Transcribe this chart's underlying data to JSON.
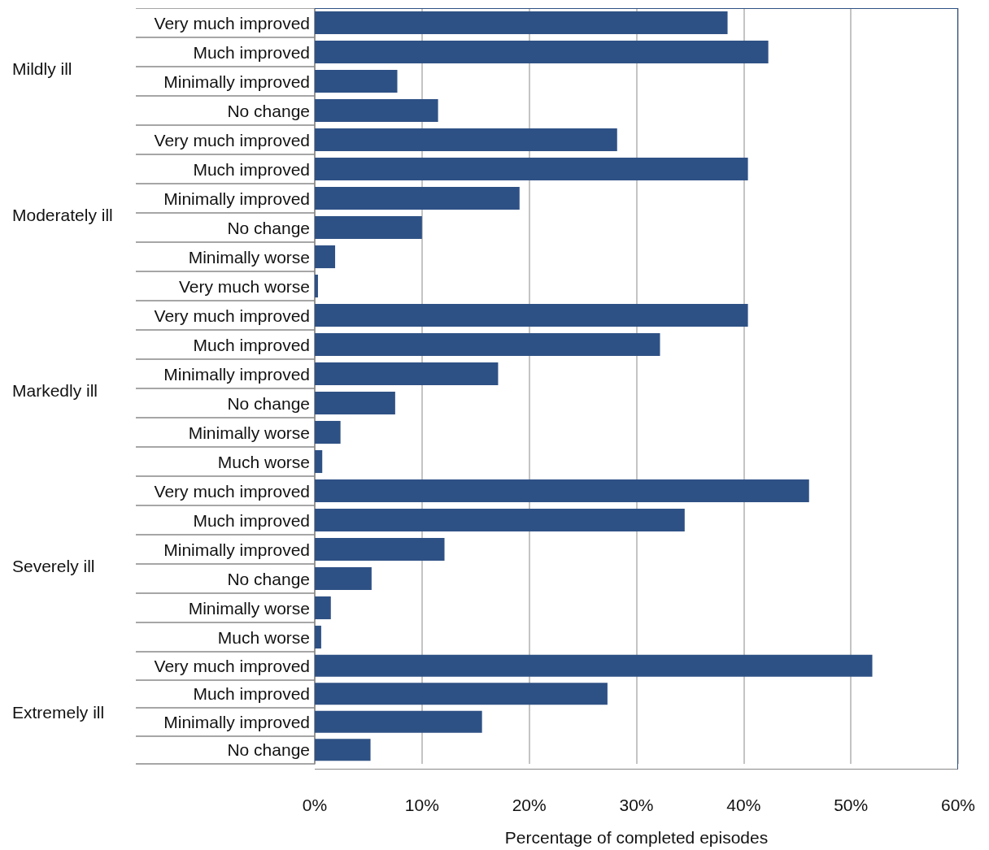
{
  "chart_data": [
    {
      "type": "bar",
      "orientation": "horizontal",
      "title": "Mildly ill",
      "categories": [
        "Very much improved",
        "Much improved",
        "Minimally improved",
        "No change"
      ],
      "values": [
        38.5,
        42.3,
        7.7,
        11.5
      ],
      "color": "#2e5185",
      "xlim": [
        0,
        60
      ],
      "xticks": [
        {
          "value": 0,
          "label": null
        },
        {
          "value": 10,
          "label": null
        },
        {
          "value": 20,
          "label": null
        },
        {
          "value": 30,
          "label": null
        },
        {
          "value": 40,
          "label": null
        },
        {
          "value": 50,
          "label": null
        },
        {
          "value": 60,
          "label": null
        }
      ],
      "grid": "x",
      "tick_labels": "y"
    },
    {
      "type": "bar",
      "orientation": "horizontal",
      "title": "Moderately ill",
      "categories": [
        "Very much improved",
        "Much improved",
        "Minimally improved",
        "No change",
        "Minimally worse",
        "Very much worse"
      ],
      "values": [
        28.2,
        40.4,
        19.1,
        10.0,
        1.9,
        0.3
      ],
      "color": "#2e5185",
      "xlim": [
        0,
        60
      ],
      "xticks": [
        {
          "value": 0,
          "label": null
        },
        {
          "value": 10,
          "label": null
        },
        {
          "value": 20,
          "label": null
        },
        {
          "value": 30,
          "label": null
        },
        {
          "value": 40,
          "label": null
        },
        {
          "value": 50,
          "label": null
        },
        {
          "value": 60,
          "label": null
        }
      ],
      "grid": "x",
      "tick_labels": "y"
    },
    {
      "type": "bar",
      "orientation": "horizontal",
      "title": "Markedly ill",
      "categories": [
        "Very much improved",
        "Much improved",
        "Minimally improved",
        "No change",
        "Minimally worse",
        "Much worse"
      ],
      "values": [
        40.4,
        32.2,
        17.1,
        7.5,
        2.4,
        0.7
      ],
      "color": "#2e5185",
      "xlim": [
        0,
        60
      ],
      "xticks": [
        {
          "value": 0,
          "label": null
        },
        {
          "value": 10,
          "label": null
        },
        {
          "value": 20,
          "label": null
        },
        {
          "value": 30,
          "label": null
        },
        {
          "value": 40,
          "label": null
        },
        {
          "value": 50,
          "label": null
        },
        {
          "value": 60,
          "label": null
        }
      ],
      "grid": "x",
      "tick_labels": "y"
    },
    {
      "type": "bar",
      "orientation": "horizontal",
      "title": "Severely ill",
      "categories": [
        "Very much improved",
        "Much improved",
        "Minimally improved",
        "No change",
        "Minimally worse",
        "Much worse"
      ],
      "values": [
        46.1,
        34.5,
        12.1,
        5.3,
        1.5,
        0.6
      ],
      "color": "#2e5185",
      "xlim": [
        0,
        60
      ],
      "xticks": [
        {
          "value": 0,
          "label": null
        },
        {
          "value": 10,
          "label": null
        },
        {
          "value": 20,
          "label": null
        },
        {
          "value": 30,
          "label": null
        },
        {
          "value": 40,
          "label": null
        },
        {
          "value": 50,
          "label": null
        },
        {
          "value": 60,
          "label": null
        }
      ],
      "grid": "x",
      "tick_labels": "y"
    },
    {
      "type": "bar",
      "orientation": "horizontal",
      "title": "Extremely ill",
      "categories": [
        "Very much improved",
        "Much improved",
        "Minimally improved",
        "No change"
      ],
      "values": [
        52.0,
        27.3,
        15.6,
        5.2
      ],
      "color": "#2e5185",
      "xlim": [
        0,
        60
      ],
      "xticks": [
        {
          "value": 0,
          "label": "0%"
        },
        {
          "value": 10,
          "label": "10%"
        },
        {
          "value": 20,
          "label": "20%"
        },
        {
          "value": 30,
          "label": "30%"
        },
        {
          "value": 40,
          "label": "40%"
        },
        {
          "value": 50,
          "label": "50%"
        },
        {
          "value": 60,
          "label": "60%"
        }
      ],
      "grid": "x",
      "xlabel": "Percentage of completed episodes"
    }
  ]
}
